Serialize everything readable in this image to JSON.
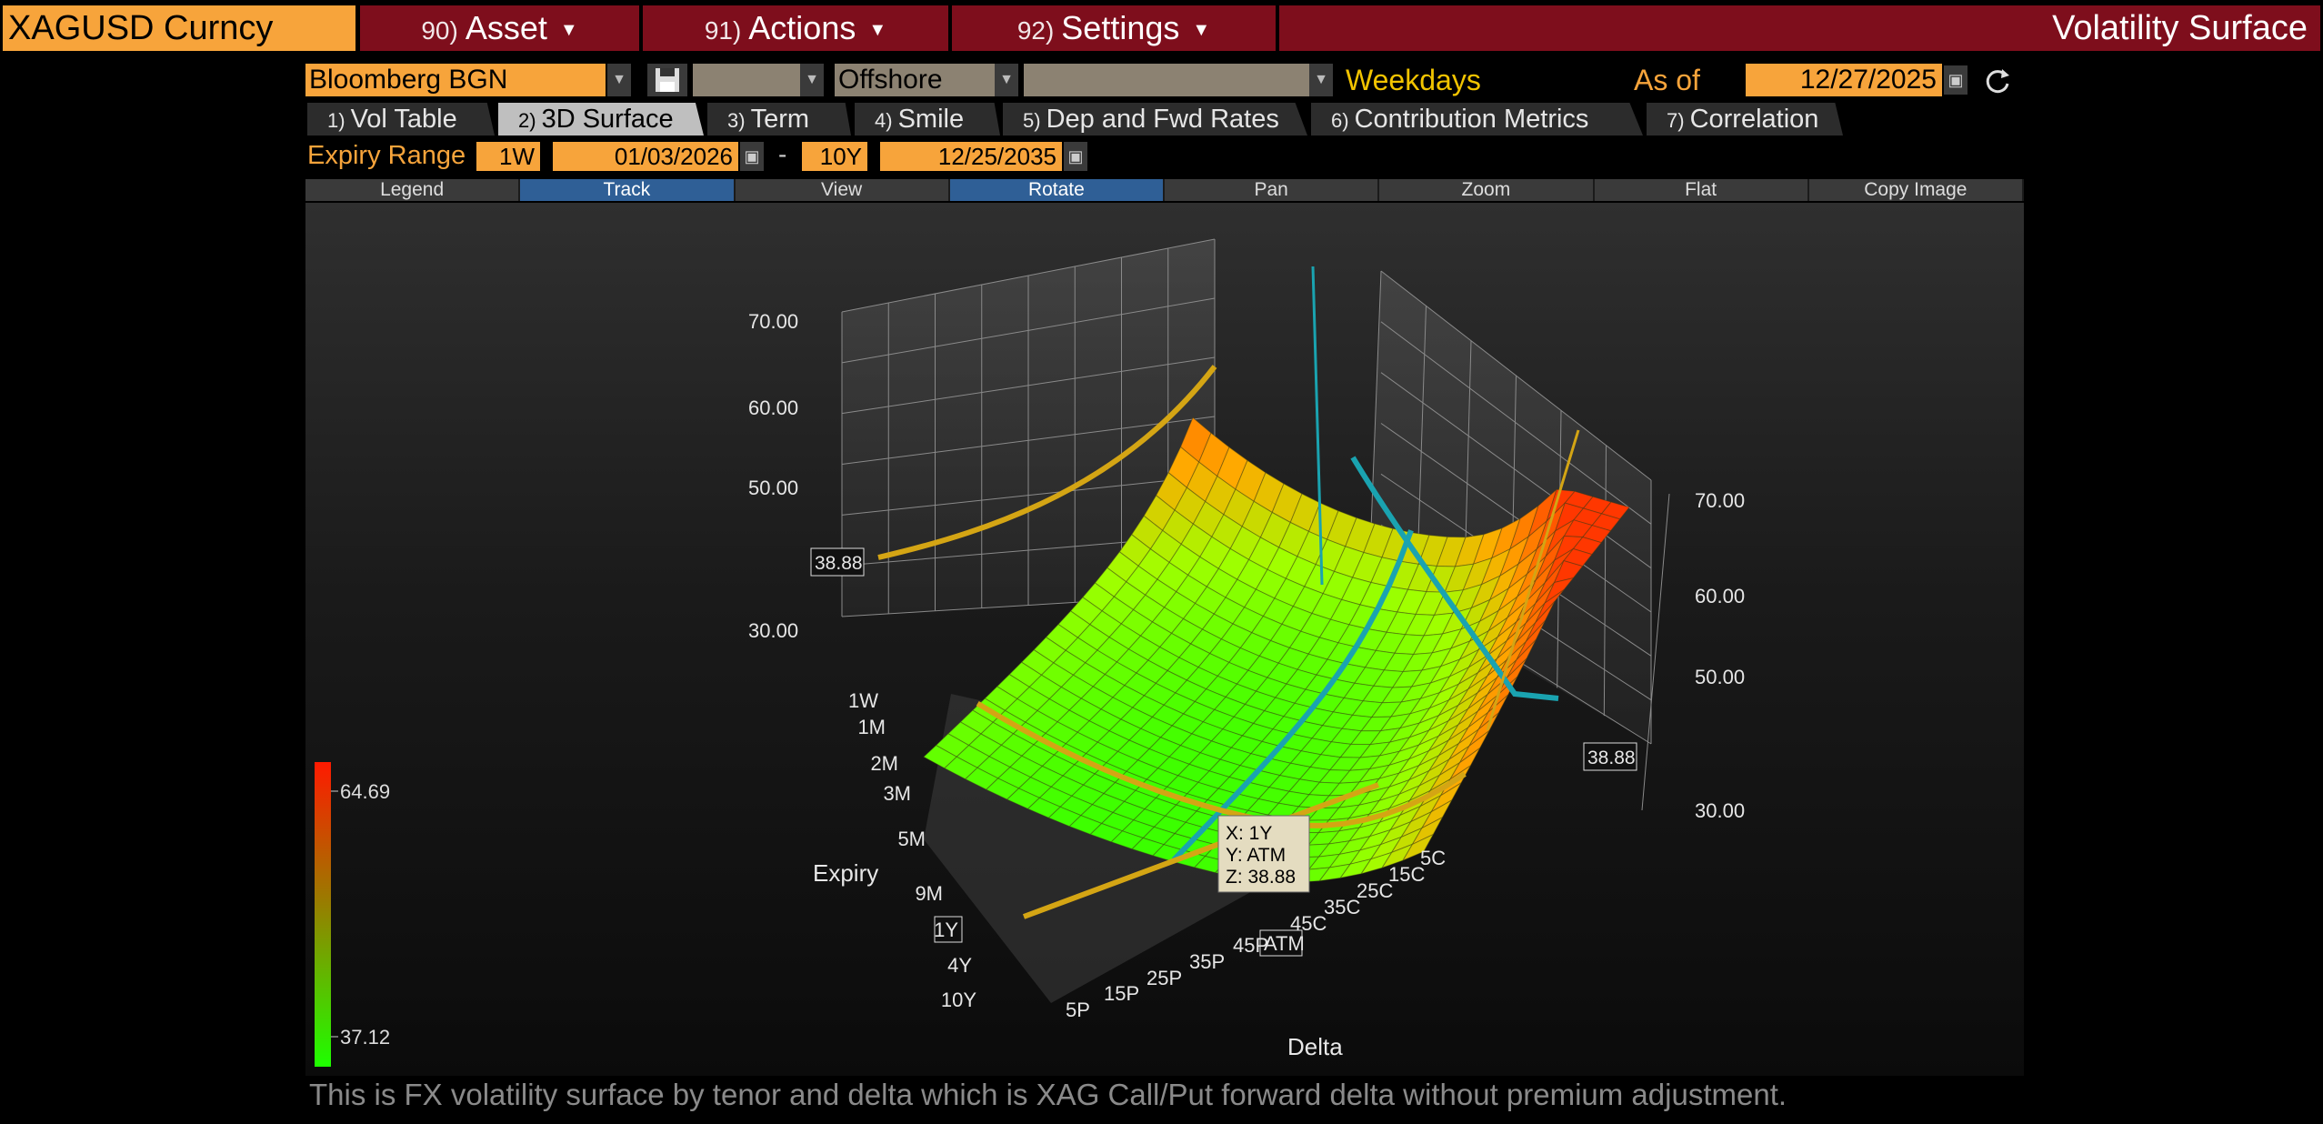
{
  "topbar": {
    "ticker": "XAGUSD Curncy",
    "menus": [
      {
        "num": "90)",
        "label": "Asset"
      },
      {
        "num": "91)",
        "label": "Actions"
      },
      {
        "num": "92)",
        "label": "Settings"
      }
    ],
    "screen_title": "Volatility Surface"
  },
  "controls": {
    "source": "Bloomberg BGN",
    "market": "Offshore",
    "calendar": "Weekdays",
    "as_of_label": "As of",
    "as_of_date": "12/27/2025"
  },
  "tabs": [
    {
      "num": "1)",
      "label": "Vol Table"
    },
    {
      "num": "2)",
      "label": "3D Surface",
      "active": true
    },
    {
      "num": "3)",
      "label": "Term"
    },
    {
      "num": "4)",
      "label": "Smile"
    },
    {
      "num": "5)",
      "label": "Dep and Fwd Rates"
    },
    {
      "num": "6)",
      "label": "Contribution Metrics"
    },
    {
      "num": "7)",
      "label": "Correlation"
    }
  ],
  "expiry_range": {
    "label": "Expiry Range",
    "from_tenor": "1W",
    "from_date": "01/03/2026",
    "separator": "-",
    "to_tenor": "10Y",
    "to_date": "12/25/2035"
  },
  "toolbar": [
    "Legend",
    "Track",
    "View",
    "Rotate",
    "Pan",
    "Zoom",
    "Flat",
    "Copy Image"
  ],
  "toolbar_selected": [
    "Track",
    "Rotate"
  ],
  "chart_data": {
    "type": "surface",
    "xlabel": "Expiry",
    "ylabel": "Delta",
    "expiry_ticks": [
      "1W",
      "1M",
      "2M",
      "3M",
      "5M",
      "9M",
      "1Y",
      "4Y",
      "10Y"
    ],
    "delta_ticks": [
      "5P",
      "15P",
      "25P",
      "35P",
      "45P",
      "ATM",
      "45C",
      "35C",
      "25C",
      "15C",
      "5C"
    ],
    "z_ticks_left": [
      "70.00",
      "60.00",
      "50.00",
      "30.00"
    ],
    "z_ticks_right": [
      "70.00",
      "60.00",
      "50.00",
      "30.00"
    ],
    "z_marker": "38.88",
    "color_scale": {
      "max": "64.69",
      "min": "37.12",
      "colors": [
        "#ff1a00",
        "#1eff00"
      ]
    },
    "tooltip": {
      "x": "X: 1Y",
      "y": "Y: ATM",
      "z": "Z: 38.88"
    },
    "highlight_expiry": "1Y",
    "highlight_delta": "ATM"
  },
  "footnote": "This is FX volatility surface by tenor and delta which is XAG Call/Put forward delta without premium adjustment."
}
